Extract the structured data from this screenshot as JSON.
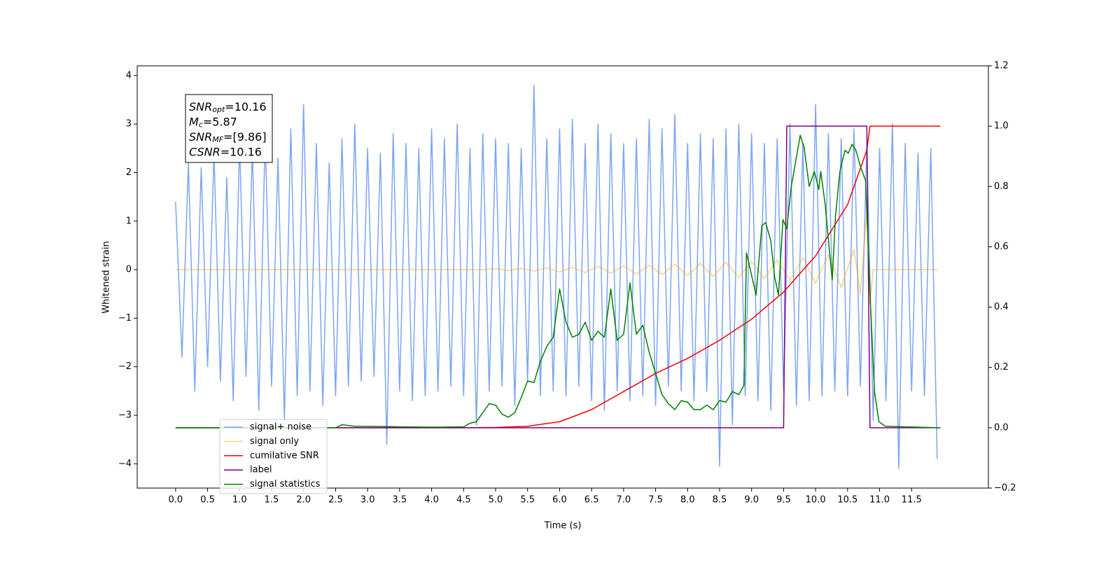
{
  "chart_data": {
    "type": "line",
    "xlabel": "Time (s)",
    "ylabel": "Whitened strain",
    "xlim": [
      -0.6,
      12.7
    ],
    "ylim": [
      -4.5,
      4.2
    ],
    "y2lim": [
      -0.2,
      1.2
    ],
    "xticks": [
      {
        "value": 0,
        "label": "0.0"
      },
      0.5,
      {
        "value": 1,
        "label": "1.0"
      },
      1.5,
      {
        "value": 2,
        "label": "2.0"
      },
      2.5,
      {
        "value": 3,
        "label": "3.0"
      },
      3.5,
      {
        "value": 4,
        "label": "4.0"
      },
      4.5,
      {
        "value": 5,
        "label": "5.0"
      },
      5.5,
      {
        "value": 6,
        "label": "6.0"
      },
      6.5,
      {
        "value": 7,
        "label": "7.0"
      },
      7.5,
      {
        "value": 8,
        "label": "8.0"
      },
      8.5,
      {
        "value": 9,
        "label": "9.0"
      },
      9.5,
      {
        "value": 10,
        "label": "10.0"
      },
      10.5,
      {
        "value": 11,
        "label": "11.0"
      },
      11.5
    ],
    "yticks": [
      {
        "value": -4,
        "label": "−4"
      },
      {
        "value": -3,
        "label": "−3"
      },
      {
        "value": -2,
        "label": "−2"
      },
      {
        "value": -1,
        "label": "−1"
      },
      0,
      1,
      2,
      3,
      4
    ],
    "y2ticks": [
      {
        "value": -0.2,
        "label": "−0.2"
      },
      {
        "value": 0,
        "label": "0.0"
      },
      0.2,
      0.4,
      0.6,
      0.8,
      {
        "value": 1,
        "label": "1.0"
      },
      1.2
    ],
    "annotations": [
      {
        "main": "SNR",
        "sub": "opt",
        "rest": "=10.16"
      },
      {
        "main": "M",
        "sub": "c",
        "rest": "=5.87"
      },
      {
        "main": "SNR",
        "sub": "MF",
        "rest": "=[9.86]"
      },
      {
        "main": "CSNR",
        "rest": "=10.16"
      }
    ],
    "legend": "lower left",
    "series": [
      {
        "name": "signal+ noise",
        "color": "#6495ed",
        "alpha": 0.85,
        "axis": "y",
        "x": [
          0,
          0.1,
          0.2,
          0.3,
          0.4,
          0.5,
          0.6,
          0.7,
          0.8,
          0.9,
          1,
          1.1,
          1.2,
          1.3,
          1.4,
          1.5,
          1.6,
          1.7,
          1.8,
          1.9,
          2,
          2.1,
          2.2,
          2.3,
          2.4,
          2.5,
          2.6,
          2.7,
          2.8,
          2.9,
          3,
          3.1,
          3.2,
          3.3,
          3.4,
          3.5,
          3.6,
          3.7,
          3.8,
          3.9,
          4,
          4.1,
          4.2,
          4.3,
          4.4,
          4.5,
          4.6,
          4.7,
          4.8,
          4.9,
          5,
          5.1,
          5.2,
          5.3,
          5.4,
          5.5,
          5.6,
          5.7,
          5.8,
          5.9,
          6,
          6.1,
          6.2,
          6.3,
          6.4,
          6.5,
          6.6,
          6.7,
          6.8,
          6.9,
          7,
          7.1,
          7.2,
          7.3,
          7.4,
          7.5,
          7.6,
          7.7,
          7.8,
          7.9,
          8,
          8.1,
          8.2,
          8.3,
          8.4,
          8.5,
          8.6,
          8.7,
          8.8,
          8.9,
          9,
          9.1,
          9.2,
          9.3,
          9.4,
          9.5,
          9.6,
          9.7,
          9.8,
          9.9,
          10,
          10.1,
          10.2,
          10.3,
          10.4,
          10.5,
          10.6,
          10.7,
          10.8,
          10.9,
          11,
          11.1,
          11.2,
          11.3,
          11.4,
          11.5,
          11.6,
          11.7,
          11.8,
          11.9
        ],
        "values": [
          1.4,
          -1.8,
          2.2,
          -2.5,
          2.1,
          -2.0,
          2.4,
          -2.3,
          1.9,
          -2.7,
          2.6,
          -2.2,
          2.5,
          -2.9,
          2.8,
          -2.4,
          2.3,
          -3.1,
          2.9,
          -2.6,
          3.4,
          -2.5,
          2.6,
          -2.8,
          2.2,
          -2.6,
          2.7,
          -2.4,
          3.0,
          -2.3,
          2.5,
          -2.2,
          2.4,
          -3.6,
          2.8,
          -2.5,
          2.6,
          -2.7,
          2.5,
          -2.6,
          2.9,
          -2.5,
          2.7,
          -2.4,
          3.0,
          -2.6,
          2.5,
          -3.2,
          2.8,
          -2.5,
          2.7,
          -2.4,
          2.6,
          -2.8,
          2.5,
          -2.3,
          3.8,
          -2.6,
          2.7,
          -2.5,
          2.9,
          -2.6,
          3.1,
          -2.4,
          2.6,
          -2.7,
          3.0,
          -2.9,
          2.8,
          -2.5,
          2.6,
          -2.7,
          2.7,
          -2.6,
          3.1,
          -2.8,
          2.9,
          -2.4,
          3.2,
          -2.5,
          2.6,
          -2.7,
          2.8,
          -2.5,
          2.7,
          -4.05,
          2.9,
          -3.2,
          3.0,
          -2.6,
          2.8,
          -2.7,
          2.6,
          -2.9,
          2.7,
          -2.5,
          3.0,
          -2.8,
          2.6,
          -2.7,
          3.4,
          -2.6,
          2.8,
          -2.5,
          2.7,
          -2.6,
          2.9,
          -2.4,
          2.6,
          -3.1,
          2.5,
          -2.7,
          3.0,
          -4.1,
          2.6,
          -2.5,
          2.4,
          -2.6,
          2.5,
          -3.9
        ]
      },
      {
        "name": "signal only",
        "color": "#ffa500",
        "alpha": 0.5,
        "axis": "y",
        "x": [
          0,
          0.2,
          0.4,
          0.6,
          0.8,
          1,
          1.2,
          1.4,
          1.6,
          1.8,
          2,
          2.2,
          2.4,
          2.6,
          2.8,
          3,
          3.2,
          3.4,
          3.6,
          3.8,
          4,
          4.2,
          4.4,
          4.6,
          4.8,
          5,
          5.2,
          5.4,
          5.6,
          5.8,
          6,
          6.2,
          6.4,
          6.6,
          6.8,
          7,
          7.2,
          7.4,
          7.6,
          7.8,
          8,
          8.2,
          8.4,
          8.6,
          8.8,
          9,
          9.2,
          9.4,
          9.6,
          9.8,
          10,
          10.2,
          10.4,
          10.6,
          10.7,
          10.8,
          10.85,
          10.9,
          11.9
        ],
        "values": [
          0,
          0,
          0,
          0,
          0,
          0,
          0,
          0,
          0,
          0,
          0,
          0,
          0,
          0,
          0,
          0,
          0,
          0,
          0,
          0,
          0,
          0,
          0,
          0,
          0,
          0.02,
          -0.02,
          0.03,
          -0.03,
          0.04,
          -0.05,
          0.05,
          -0.06,
          0.07,
          -0.07,
          0.08,
          -0.09,
          0.09,
          -0.1,
          0.11,
          -0.12,
          0.13,
          -0.14,
          0.15,
          -0.16,
          0.17,
          -0.18,
          0.2,
          -0.22,
          0.25,
          -0.28,
          0.31,
          -0.36,
          0.42,
          -0.5,
          1.2,
          -0.7,
          0,
          0
        ]
      },
      {
        "name": "cumilative SNR",
        "color": "#ff0000",
        "axis": "y2",
        "x": [
          0,
          4.5,
          5,
          5.5,
          6,
          6.5,
          7,
          7.5,
          8,
          8.5,
          9,
          9.5,
          10,
          10.5,
          10.8,
          10.85,
          11.95
        ],
        "values": [
          0,
          0,
          0.001,
          0.005,
          0.02,
          0.06,
          0.12,
          0.18,
          0.23,
          0.29,
          0.36,
          0.45,
          0.57,
          0.74,
          0.92,
          1,
          1
        ]
      },
      {
        "name": "label",
        "color": "#800080",
        "axis": "y2",
        "x": [
          0,
          9.5,
          9.55,
          10.8,
          10.85,
          11.95
        ],
        "values": [
          0,
          0,
          1,
          1,
          0,
          0
        ]
      },
      {
        "name": "signal statistics",
        "color": "#008000",
        "axis": "y2",
        "x": [
          0,
          2.5,
          2.6,
          2.8,
          3,
          3.5,
          4,
          4.5,
          4.6,
          4.7,
          4.8,
          4.9,
          5,
          5.1,
          5.2,
          5.3,
          5.4,
          5.5,
          5.6,
          5.7,
          5.8,
          5.9,
          6,
          6.1,
          6.2,
          6.3,
          6.4,
          6.5,
          6.6,
          6.7,
          6.8,
          6.9,
          7,
          7.1,
          7.2,
          7.3,
          7.4,
          7.5,
          7.6,
          7.7,
          7.8,
          7.9,
          8,
          8.1,
          8.2,
          8.3,
          8.4,
          8.5,
          8.6,
          8.7,
          8.8,
          8.88,
          8.92,
          9.07,
          9.16,
          9.22,
          9.3,
          9.36,
          9.42,
          9.49,
          9.55,
          9.62,
          9.76,
          9.82,
          9.9,
          9.98,
          10.05,
          10.08,
          10.15,
          10.21,
          10.26,
          10.31,
          10.38,
          10.46,
          10.51,
          10.57,
          10.63,
          10.71,
          10.78,
          10.86,
          10.92,
          10.99,
          11.09,
          11.93
        ],
        "values": [
          0,
          0,
          0.01,
          0.005,
          0.005,
          0.003,
          0.002,
          0.003,
          0.015,
          0.02,
          0.05,
          0.08,
          0.075,
          0.045,
          0.035,
          0.05,
          0.1,
          0.155,
          0.15,
          0.22,
          0.27,
          0.3,
          0.46,
          0.35,
          0.3,
          0.31,
          0.35,
          0.29,
          0.32,
          0.3,
          0.46,
          0.29,
          0.31,
          0.48,
          0.31,
          0.34,
          0.25,
          0.18,
          0.11,
          0.08,
          0.06,
          0.09,
          0.085,
          0.06,
          0.06,
          0.075,
          0.06,
          0.09,
          0.085,
          0.12,
          0.11,
          0.14,
          0.58,
          0.44,
          0.67,
          0.68,
          0.62,
          0.5,
          0.44,
          0.69,
          0.66,
          0.8,
          0.97,
          0.93,
          0.8,
          0.85,
          0.79,
          0.85,
          0.74,
          0.6,
          0.49,
          0.7,
          0.85,
          0.92,
          0.91,
          0.94,
          0.92,
          0.86,
          0.82,
          0.4,
          0.12,
          0.02,
          0.005,
          0
        ]
      }
    ]
  }
}
